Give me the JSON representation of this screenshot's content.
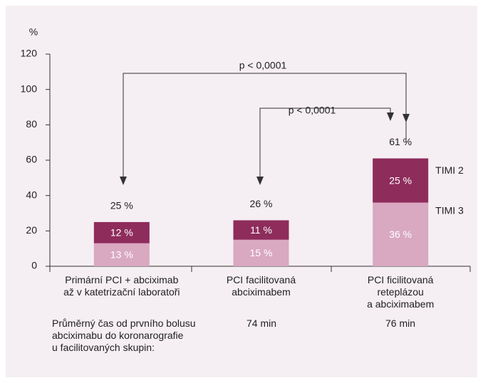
{
  "chart_data": {
    "type": "stacked-bar",
    "y_label": "%",
    "categories": [
      "Primární PCI + abciximab\naž v katetrizační laboratoři",
      "PCI facilitovaná\nabciximabem",
      "PCI ficilitovaná reteplázou\na abciximabem"
    ],
    "series": [
      {
        "name": "TIMI 3",
        "color": "#d9a8c1",
        "values": [
          13,
          15,
          36
        ],
        "value_labels": [
          "13 %",
          "15 %",
          "36 %"
        ]
      },
      {
        "name": "TIMI 2",
        "color": "#8e2c5c",
        "values": [
          12,
          11,
          25
        ],
        "value_labels": [
          "12 %",
          "11 %",
          "25 %"
        ]
      }
    ],
    "totals": [
      25,
      26,
      61
    ],
    "total_labels": [
      "25 %",
      "26 %",
      "61 %"
    ],
    "ylim": [
      0,
      120
    ],
    "yticks": [
      0,
      20,
      40,
      60,
      80,
      100,
      120
    ],
    "annotations": [
      "p < 0,0001",
      "p < 0,0001"
    ],
    "footnote": {
      "label": "Průměrný čas od prvního bolusu\nabciximabu do koronarografie\nu facilitovaných skupin:",
      "values": [
        "74 min",
        "76 min"
      ]
    }
  }
}
